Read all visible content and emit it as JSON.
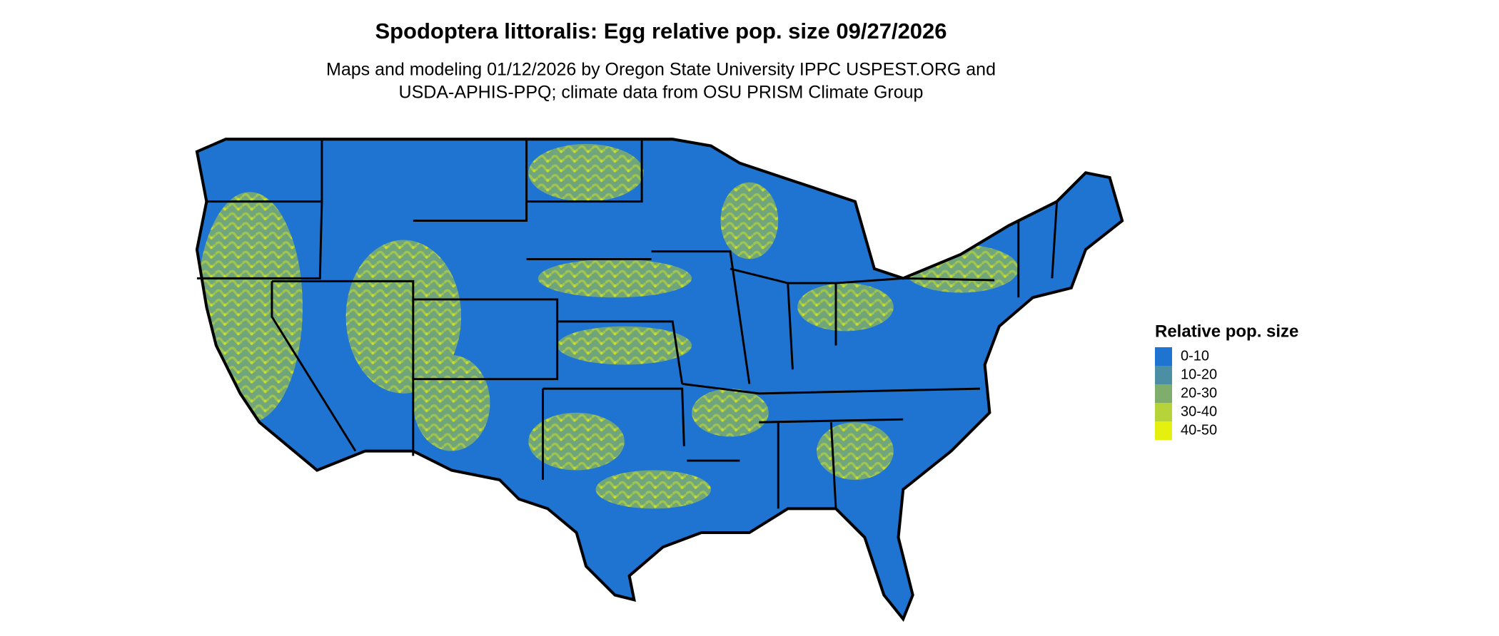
{
  "title": "Spodoptera littoralis: Egg relative pop. size 09/27/2026",
  "subtitle": [
    "Maps and modeling 01/12/2026 by Oregon State University IPPC USPEST.ORG and",
    "USDA-APHIS-PPQ; climate data from OSU PRISM Climate Group"
  ],
  "legend": {
    "title": "Relative pop. size",
    "items": [
      {
        "label": "0-10",
        "color": "#1f74d2"
      },
      {
        "label": "10-20",
        "color": "#4c8ea3"
      },
      {
        "label": "20-30",
        "color": "#7fae6c"
      },
      {
        "label": "30-40",
        "color": "#b6d33a"
      },
      {
        "label": "40-50",
        "color": "#e6f00f"
      }
    ]
  }
}
